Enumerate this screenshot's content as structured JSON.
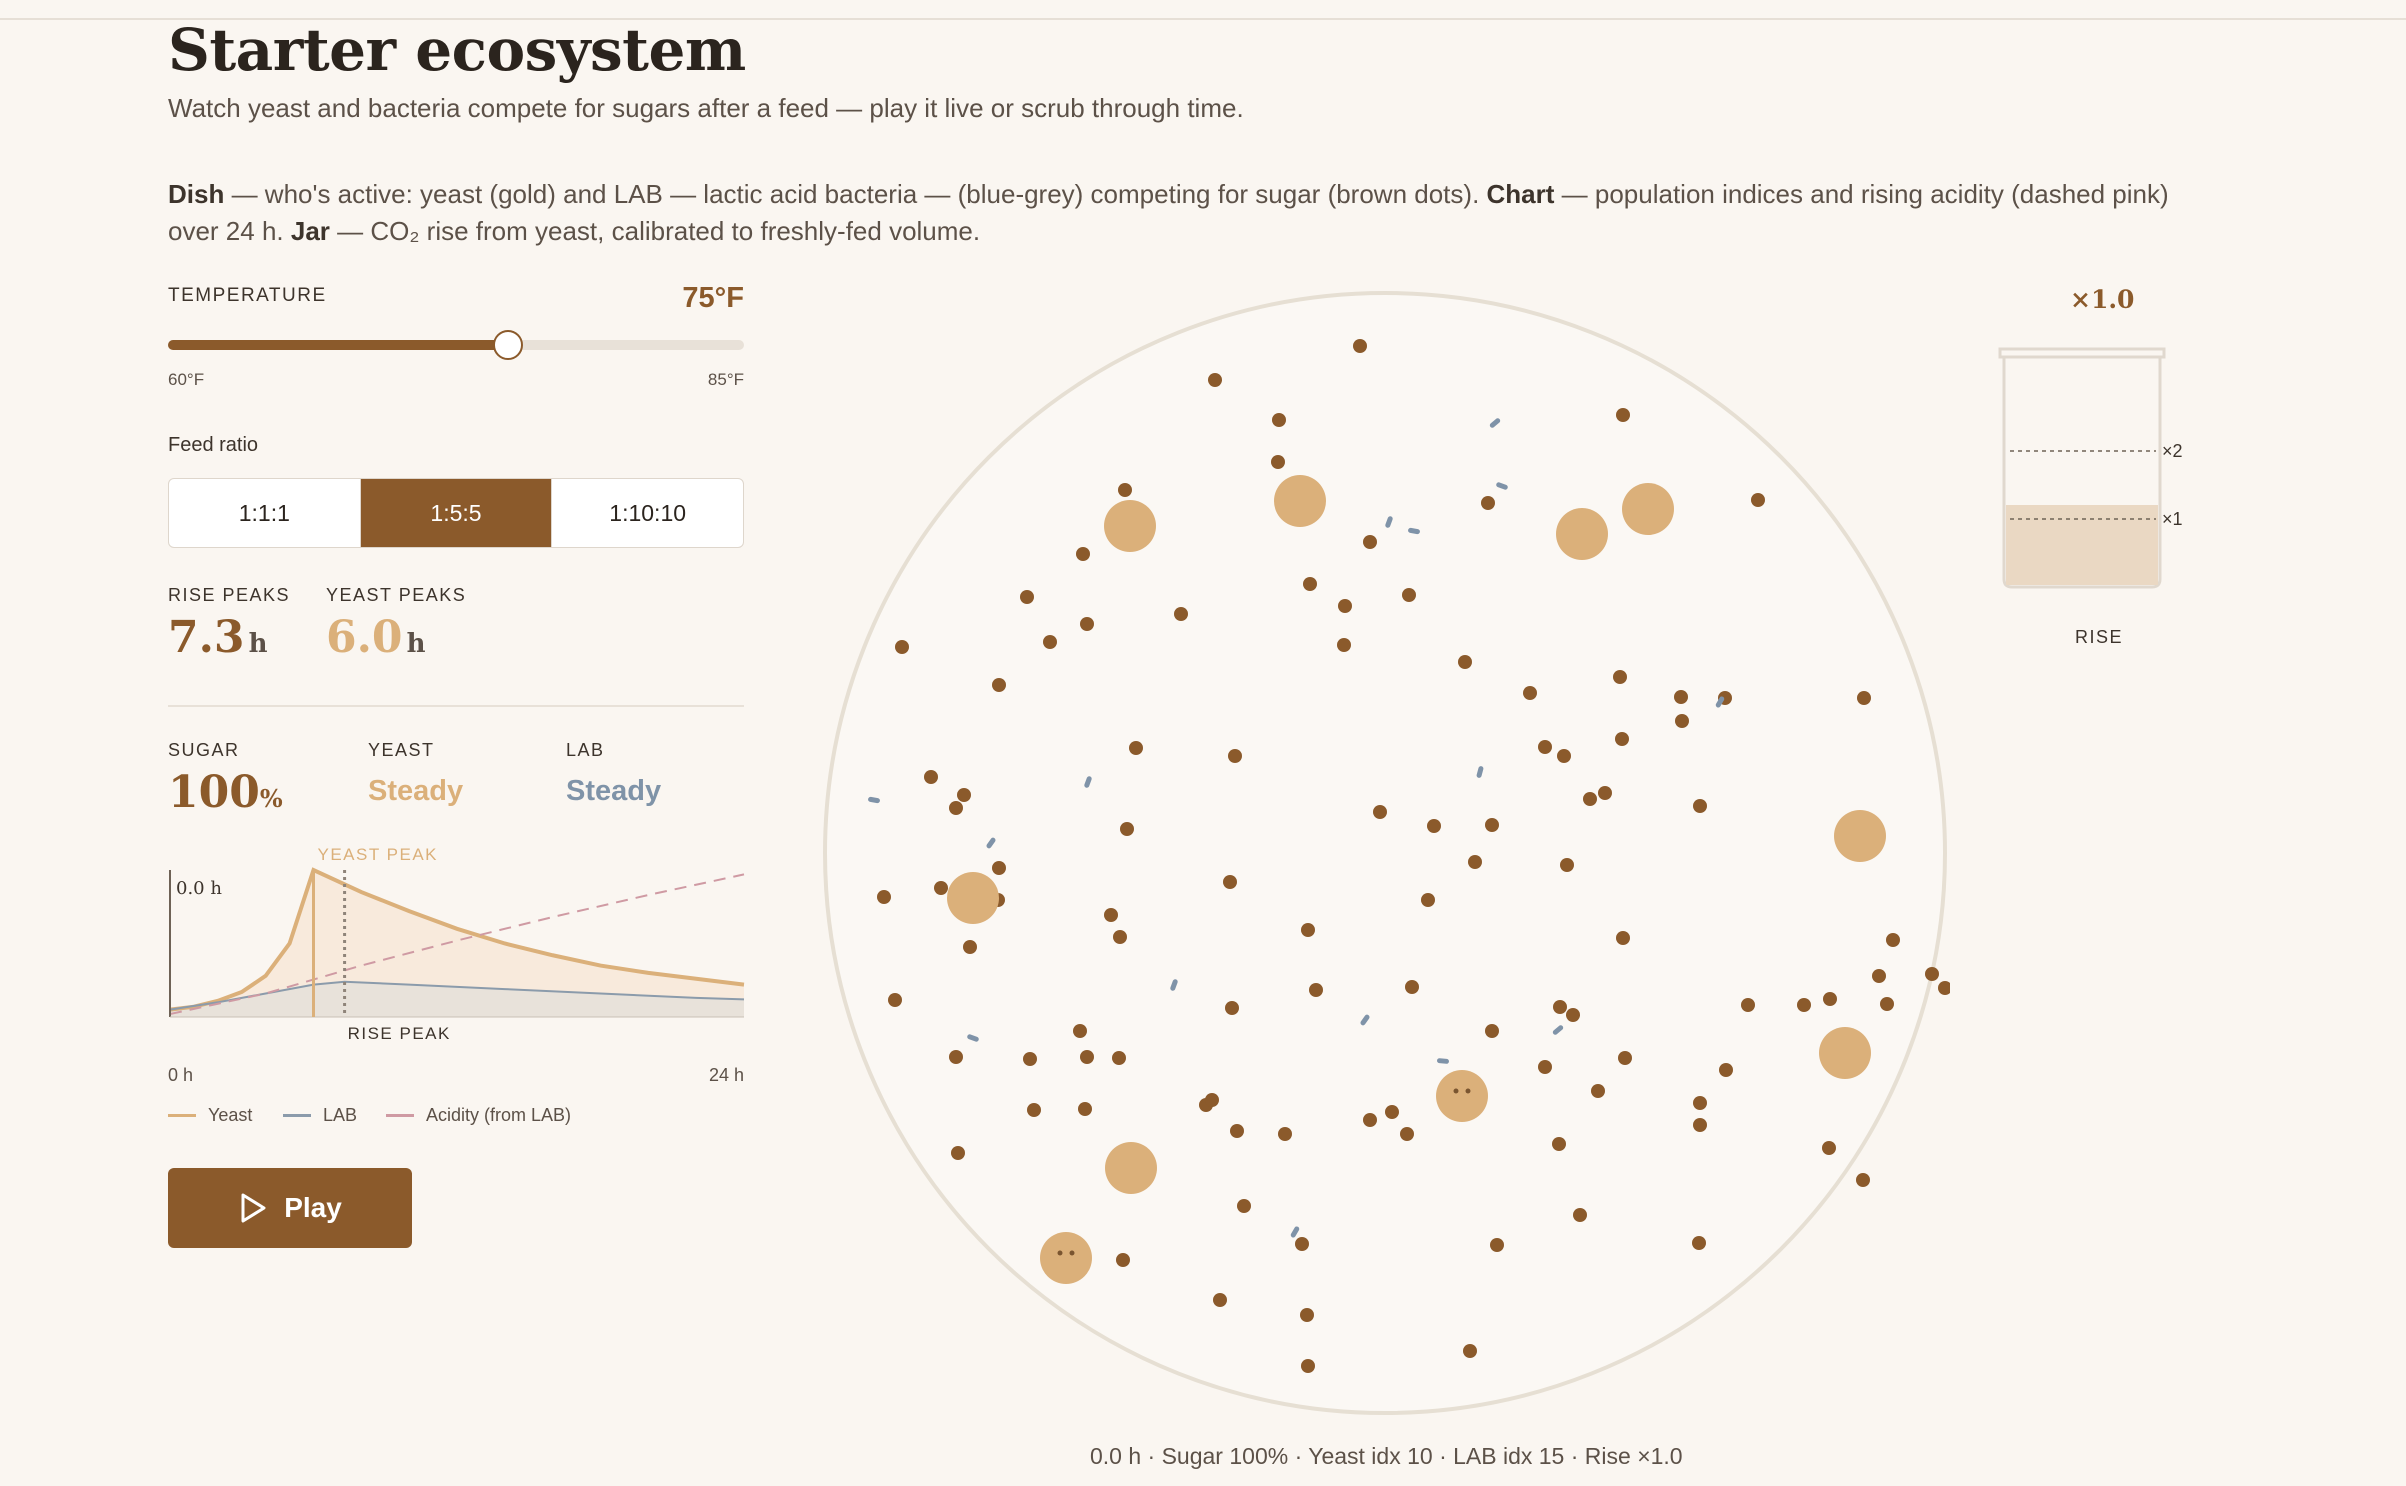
{
  "header": {
    "title": "Starter ecosystem",
    "subtitle": "Watch yeast and bacteria compete for sugars after a feed — play it live or scrub through time."
  },
  "legend_text": {
    "dish_label": "Dish",
    "dish_text": " — who's active: yeast (gold) and LAB — lactic acid bacteria — (blue-grey) competing for sugar (brown dots). ",
    "chart_label": "Chart",
    "chart_text": " — population indices and rising acidity (dashed pink) over 24 h. ",
    "jar_label": "Jar",
    "jar_text": " — CO₂ rise from yeast, calibrated to freshly-fed volume."
  },
  "controls": {
    "temperature": {
      "label": "TEMPERATURE",
      "value_text": "75°F",
      "min_label": "60°F",
      "max_label": "85°F",
      "value": 75,
      "min": 60,
      "max": 85
    },
    "feed_ratio": {
      "label": "Feed ratio",
      "options": [
        "1:1:1",
        "1:5:5",
        "1:10:10"
      ],
      "selected": "1:5:5"
    }
  },
  "peaks": {
    "rise_label": "RISE PEAKS",
    "rise_value": "7.3",
    "rise_unit": "h",
    "yeast_label": "YEAST PEAKS",
    "yeast_value": "6.0",
    "yeast_unit": "h"
  },
  "stats": {
    "sugar_label": "SUGAR",
    "sugar_value": "100",
    "sugar_unit": "%",
    "yeast_label": "YEAST",
    "yeast_value": "Steady",
    "lab_label": "LAB",
    "lab_value": "Steady"
  },
  "chart_data": {
    "type": "area",
    "x_start_label": "0 h",
    "x_end_label": "24 h",
    "time_marker_label": "0.0 h",
    "yeast_peak_label": "YEAST PEAK",
    "rise_peak_label": "RISE PEAK",
    "xlim": [
      0,
      24
    ],
    "ylim": [
      0,
      1
    ],
    "yeast_peak_h": 6.0,
    "rise_peak_h": 7.3,
    "series": [
      {
        "name": "Yeast",
        "x": [
          0,
          1,
          2,
          3,
          4,
          5,
          6,
          8,
          10,
          12,
          14,
          16,
          18,
          20,
          22,
          24
        ],
        "values": [
          0.05,
          0.07,
          0.11,
          0.17,
          0.28,
          0.5,
          1.0,
          0.85,
          0.72,
          0.6,
          0.5,
          0.42,
          0.35,
          0.3,
          0.26,
          0.22
        ]
      },
      {
        "name": "LAB",
        "x": [
          0,
          2,
          4,
          6,
          7.3,
          10,
          14,
          18,
          22,
          24
        ],
        "values": [
          0.05,
          0.1,
          0.16,
          0.22,
          0.24,
          0.22,
          0.19,
          0.16,
          0.13,
          0.12
        ]
      },
      {
        "name": "Acidity (from LAB)",
        "x": [
          0,
          4,
          8,
          12,
          16,
          20,
          24
        ],
        "values": [
          0.02,
          0.16,
          0.35,
          0.52,
          0.68,
          0.83,
          0.97
        ]
      }
    ],
    "legend": [
      "Yeast",
      "LAB",
      "Acidity (from LAB)"
    ],
    "colors": {
      "yeast": "#dbb07a",
      "lab": "#8b9bab",
      "acidity": "#cf9aa3"
    }
  },
  "play_label": "Play",
  "jar": {
    "multiplier": "×1.0",
    "mark_x2": "×2",
    "mark_x1": "×1",
    "label": "RISE",
    "fill_level": 1.0
  },
  "status_line": "0.0 h · Sugar 100% · Yeast idx 10 · LAB idx 15 · Rise ×1.0",
  "colors": {
    "accent": "#8b5a2b",
    "yeast": "#dbb07a",
    "lab": "#7f93a8",
    "sugar": "#8b5a2b",
    "background": "#faf6f1"
  }
}
